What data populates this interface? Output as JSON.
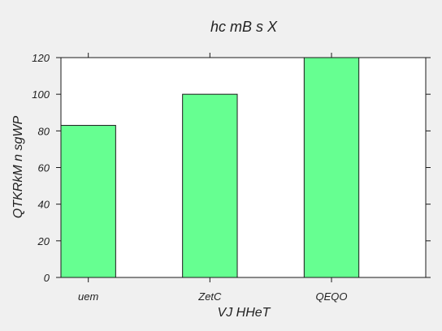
{
  "chart_data": {
    "type": "bar",
    "title": "hc   mB s X",
    "xlabel": "VJ HHeT",
    "ylabel": "QTKRkM n sgWP",
    "categories": [
      "uem",
      "ZetC",
      "QEQO"
    ],
    "values": [
      83,
      100,
      120
    ],
    "ylim": [
      0,
      120
    ],
    "yticks": [
      0,
      20,
      40,
      60,
      80,
      100,
      120
    ],
    "grid": false,
    "legend": "none",
    "colors": {
      "bar_fill": "#66ff91",
      "bar_stroke": "#1a1a1a",
      "plot_bg": "#ffffff",
      "figure_bg": "#f0f0f0",
      "axis": "#1a1a1a"
    }
  }
}
